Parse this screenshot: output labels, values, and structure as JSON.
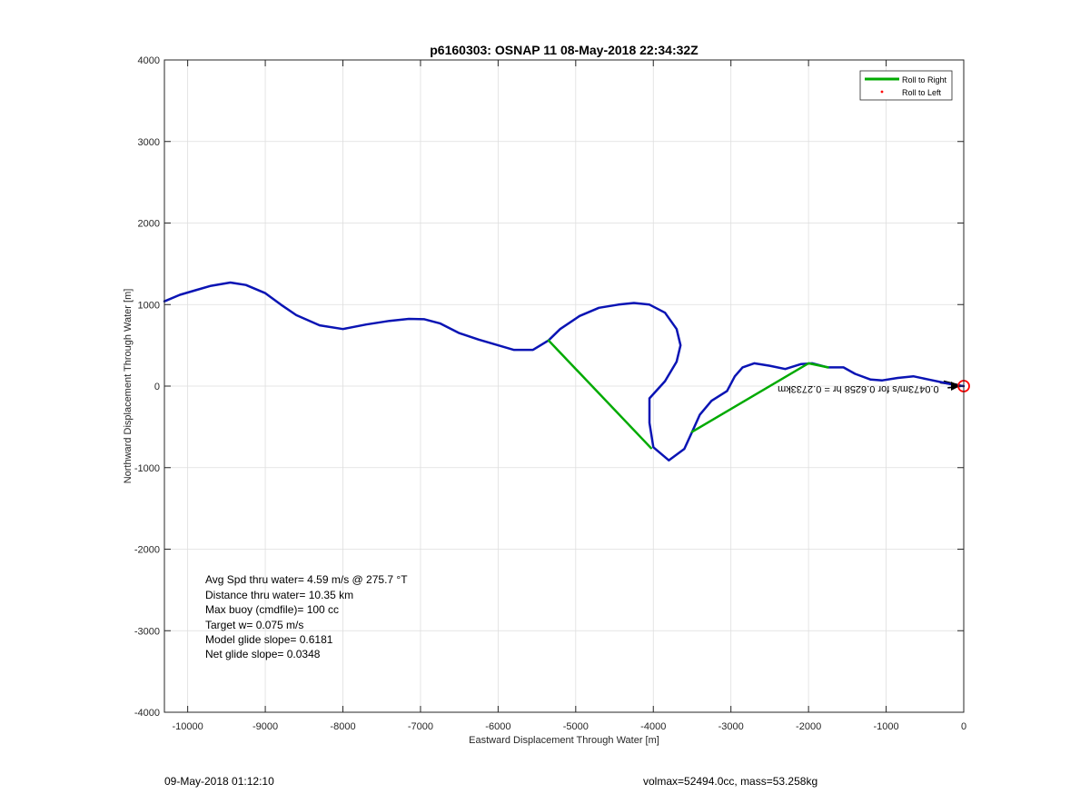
{
  "chart_data": {
    "type": "line",
    "title": "p6160303: OSNAP 11 08-May-2018 22:34:32Z",
    "xlabel": "Eastward Displacement Through Water [m]",
    "ylabel": "Northward Displacement Through Water [m]",
    "xlim": [
      -10300,
      0
    ],
    "ylim": [
      -4000,
      4000
    ],
    "grid": true,
    "x_ticks": [
      -10000,
      -9000,
      -8000,
      -7000,
      -6000,
      -5000,
      -4000,
      -3000,
      -2000,
      -1000,
      0
    ],
    "y_ticks": [
      4000,
      3000,
      2000,
      1000,
      0,
      -1000,
      -2000,
      -3000,
      -4000
    ],
    "x_tick_labels": [
      "-10000",
      "-9000",
      "-8000",
      "-7000",
      "-6000",
      "-5000",
      "-4000",
      "-3000",
      "-2000",
      "-1000",
      "0"
    ],
    "y_tick_labels": [
      "4000",
      "3000",
      "2000",
      "1000",
      "0",
      "-1000",
      "-2000",
      "-3000",
      "-4000"
    ],
    "legend": {
      "placement": "top-right",
      "entries": [
        "Roll to Right",
        "Roll to Left"
      ]
    },
    "series": [
      {
        "name": "Roll to Right",
        "color": "#00aa00",
        "segments": [
          [
            [
              -5350,
              560
            ],
            [
              -4030,
              -760
            ]
          ],
          [
            [
              -3500,
              -560
            ],
            [
              -2000,
              280
            ],
            [
              -1750,
              230
            ]
          ]
        ]
      },
      {
        "name": "Roll to Left",
        "color": "#ff0000",
        "marker": "dot",
        "points": []
      },
      {
        "color": "#0a14b4",
        "segments": [
          [
            [
              -10300,
              1040
            ],
            [
              -10100,
              1120
            ],
            [
              -9900,
              1175
            ],
            [
              -9700,
              1230
            ],
            [
              -9450,
              1270
            ],
            [
              -9250,
              1240
            ],
            [
              -9000,
              1140
            ],
            [
              -8800,
              1000
            ],
            [
              -8600,
              870
            ],
            [
              -8300,
              745
            ],
            [
              -8000,
              700
            ],
            [
              -7700,
              755
            ],
            [
              -7400,
              800
            ],
            [
              -7150,
              825
            ],
            [
              -6950,
              820
            ],
            [
              -6750,
              770
            ],
            [
              -6500,
              650
            ],
            [
              -6250,
              570
            ],
            [
              -6000,
              500
            ],
            [
              -5800,
              445
            ],
            [
              -5550,
              445
            ],
            [
              -5350,
              560
            ],
            [
              -5200,
              700
            ],
            [
              -4950,
              860
            ],
            [
              -4700,
              960
            ],
            [
              -4450,
              1000
            ],
            [
              -4250,
              1020
            ],
            [
              -4050,
              1000
            ],
            [
              -3850,
              900
            ],
            [
              -3700,
              700
            ],
            [
              -3650,
              500
            ],
            [
              -3700,
              300
            ],
            [
              -3850,
              60
            ],
            [
              -4050,
              -150
            ],
            [
              -4050,
              -450
            ],
            [
              -4000,
              -750
            ],
            [
              -3800,
              -910
            ],
            [
              -3600,
              -770
            ],
            [
              -3500,
              -560
            ],
            [
              -3400,
              -350
            ],
            [
              -3250,
              -180
            ],
            [
              -3050,
              -60
            ],
            [
              -2950,
              120
            ],
            [
              -2850,
              230
            ],
            [
              -2700,
              280
            ],
            [
              -2500,
              250
            ],
            [
              -2300,
              210
            ],
            [
              -2100,
              270
            ],
            [
              -1950,
              280
            ],
            [
              -1750,
              230
            ],
            [
              -1550,
              230
            ],
            [
              -1400,
              150
            ],
            [
              -1200,
              80
            ],
            [
              -1050,
              70
            ],
            [
              -850,
              100
            ],
            [
              -650,
              120
            ],
            [
              -450,
              80
            ],
            [
              -250,
              40
            ],
            [
              -100,
              10
            ],
            [
              0,
              0
            ]
          ]
        ]
      },
      {
        "color": "#000000",
        "segments": [
          [
            [
              -300,
              40
            ],
            [
              0,
              0
            ]
          ],
          [
            [
              -250,
              60
            ],
            [
              0,
              0
            ]
          ],
          [
            [
              -200,
              -20
            ],
            [
              0,
              0
            ]
          ],
          [
            [
              -150,
              30
            ],
            [
              0,
              0
            ]
          ]
        ]
      }
    ],
    "start_marker": {
      "x": 0,
      "y": 0,
      "color": "#ff0000",
      "shape": "circle"
    },
    "annotations": [
      {
        "text": "0.0473m/s for 0.6258 hr = 0.2733km",
        "anchor_x": -320,
        "anchor_y": 0,
        "rotation_deg": 180
      }
    ],
    "stats": [
      "Avg Spd thru water=  4.59 m/s @ 275.7 °T",
      "Distance thru water= 10.35 km",
      "Max buoy (cmdfile)= 100 cc",
      "Target w= 0.075 m/s",
      "Model glide slope= 0.6181",
      "Net glide slope= 0.0348"
    ],
    "colors": {
      "track": "#0a14b4",
      "roll_right": "#00aa00",
      "roll_left": "#ff0000",
      "grid": "#dedede",
      "axis": "#262626"
    }
  },
  "footer": {
    "left": "09-May-2018 01:12:10",
    "right": "volmax=52494.0cc, mass=53.258kg"
  }
}
